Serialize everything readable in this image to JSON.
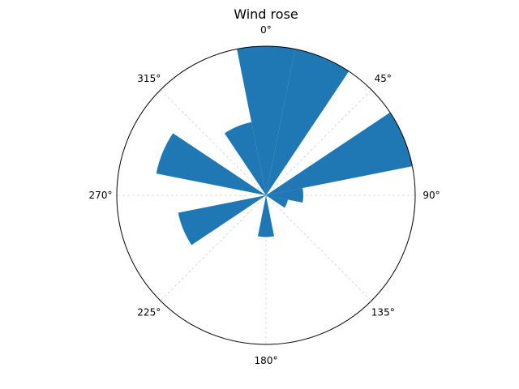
{
  "chart_data": {
    "type": "bar",
    "projection": "polar",
    "title": "Wind rose",
    "direction": "clockwise",
    "zero_location": "top",
    "angle_unit": "degrees",
    "theta_ticks": [
      "0°",
      "45°",
      "90°",
      "135°",
      "180°",
      "225°",
      "270°",
      "315°"
    ],
    "radial_tick_labels": [],
    "grid": true,
    "rmax": 10,
    "bar_width_deg": 22.5,
    "series": [
      {
        "color": "#1f77b4",
        "theta": [
          0,
          22.5,
          45,
          67.5,
          90,
          112.5,
          135,
          157.5,
          180,
          202.5,
          225,
          247.5,
          270,
          292.5,
          315,
          337.5
        ],
        "r": [
          10,
          10,
          0,
          10,
          2.5,
          1.5,
          0,
          0,
          2.8,
          0,
          0,
          6,
          0,
          7.5,
          0,
          5
        ]
      }
    ]
  }
}
